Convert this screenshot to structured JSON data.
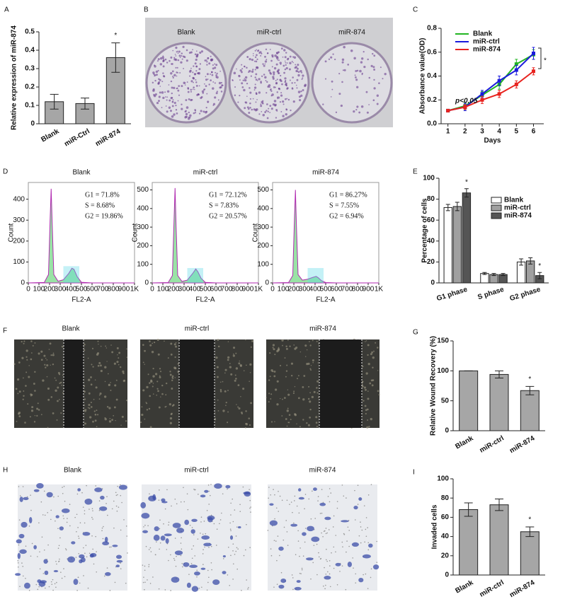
{
  "chart_data": [
    {
      "panel": "A",
      "type": "bar",
      "ylabel": "Relative expression of miR-874",
      "categories": [
        "Blank",
        "miR-Ctrl",
        "miR-874"
      ],
      "values": [
        0.12,
        0.11,
        0.36
      ],
      "errors": [
        0.04,
        0.03,
        0.08
      ],
      "color": "#a6a6a6",
      "ylim": [
        0,
        0.5
      ],
      "yticks": [
        0,
        0.1,
        0.2,
        0.3,
        0.4,
        0.5
      ],
      "annotations": [
        "*"
      ]
    },
    {
      "panel": "B",
      "type": "image",
      "style": "dish",
      "labels": [
        "Blank",
        "miR-ctrl",
        "miR-874"
      ]
    },
    {
      "panel": "C",
      "type": "line",
      "xlabel": "Days",
      "ylabel": "Absorbance value(OD)",
      "x": [
        1,
        2,
        3,
        4,
        5,
        6
      ],
      "xlim": [
        0.6,
        6.6
      ],
      "xticks": [
        1,
        2,
        3,
        4,
        5,
        6
      ],
      "ylim": [
        0,
        0.8
      ],
      "yticks": [
        {
          "value": 0,
          "label": "0.0"
        },
        0.2,
        0.4,
        0.6,
        0.8
      ],
      "series": [
        {
          "name": "Blank",
          "color": "#22b522",
          "values": [
            0.11,
            0.15,
            0.24,
            0.33,
            0.5,
            0.58
          ],
          "errors": [
            0.01,
            0.03,
            0.03,
            0.04,
            0.04,
            0.04
          ]
        },
        {
          "name": "miR-ctrl",
          "color": "#1a1adc",
          "values": [
            0.11,
            0.14,
            0.25,
            0.36,
            0.45,
            0.59
          ],
          "errors": [
            0.01,
            0.03,
            0.03,
            0.04,
            0.04,
            0.05
          ]
        },
        {
          "name": "miR-874",
          "color": "#e8231f",
          "values": [
            0.11,
            0.14,
            0.2,
            0.25,
            0.33,
            0.44
          ],
          "errors": [
            0.01,
            0.02,
            0.03,
            0.03,
            0.03,
            0.03
          ]
        }
      ],
      "annotations": [
        "p<0.05",
        "*"
      ]
    },
    {
      "panel": "D",
      "type": "flow",
      "plots": [
        {
          "title": "Blank",
          "stats": [
            "G1 = 71.8%",
            "S = 8.68%",
            "G2 = 19.86%"
          ],
          "xlabel": "FL2-A",
          "ylabel": "Count",
          "x": [
            0,
            150,
            190,
            205,
            215,
            225,
            240,
            280,
            330,
            380,
            410,
            430,
            460,
            500,
            600,
            1000
          ],
          "values": [
            0,
            2,
            40,
            300,
            450,
            280,
            40,
            8,
            15,
            45,
            70,
            65,
            30,
            3,
            0,
            0
          ],
          "xlim": [
            0,
            1000
          ],
          "xticks": [
            0,
            100,
            200,
            300,
            400,
            500,
            600,
            700,
            800,
            900,
            {
              "value": 1000,
              "label": "1K"
            }
          ],
          "ylim": [
            0,
            480
          ],
          "yticks": [
            0,
            100,
            200,
            300,
            400
          ]
        },
        {
          "title": "miR-ctrl",
          "stats": [
            "G1 = 72.12%",
            "S = 7.83%",
            "G2 = 20.57%"
          ],
          "xlabel": "FL2-A",
          "ylabel": "Count",
          "x": [
            0,
            150,
            190,
            205,
            215,
            225,
            240,
            280,
            330,
            380,
            410,
            430,
            460,
            500,
            600,
            1000
          ],
          "values": [
            0,
            2,
            40,
            330,
            510,
            300,
            40,
            8,
            15,
            50,
            75,
            60,
            25,
            3,
            0,
            0
          ],
          "xlim": [
            0,
            1000
          ],
          "xticks": [
            0,
            100,
            200,
            300,
            400,
            500,
            600,
            700,
            800,
            900,
            {
              "value": 1000,
              "label": "1K"
            }
          ],
          "ylim": [
            0,
            540
          ],
          "yticks": [
            0,
            100,
            200,
            300,
            400,
            500
          ]
        },
        {
          "title": "miR-874",
          "stats": [
            "G1 = 86.27%",
            "S = 7.55%",
            "G2 = 6.94%"
          ],
          "xlabel": "FL2-A",
          "ylabel": "Count",
          "x": [
            0,
            150,
            190,
            205,
            215,
            225,
            240,
            280,
            330,
            380,
            410,
            430,
            460,
            500,
            600,
            1000
          ],
          "values": [
            0,
            2,
            40,
            330,
            500,
            300,
            45,
            15,
            20,
            30,
            35,
            28,
            12,
            2,
            0,
            0
          ],
          "xlim": [
            0,
            1000
          ],
          "xticks": [
            0,
            100,
            200,
            300,
            400,
            500,
            600,
            700,
            800,
            900,
            {
              "value": 1000,
              "label": "1K"
            }
          ],
          "ylim": [
            0,
            540
          ],
          "yticks": [
            0,
            100,
            200,
            300,
            400,
            500
          ]
        }
      ]
    },
    {
      "panel": "E",
      "type": "grouped_bar",
      "ylabel": "Percentage of cells",
      "categories": [
        "G1 phase",
        "S phase",
        "G2 phase"
      ],
      "ylim": [
        0,
        100
      ],
      "yticks": [
        0,
        20,
        40,
        60,
        80,
        100
      ],
      "series": [
        {
          "name": "Blank",
          "color": "#ffffff",
          "values": [
            72,
            9,
            20
          ],
          "errors": [
            3,
            1,
            3
          ]
        },
        {
          "name": "miR-ctrl",
          "color": "#a0a0a0",
          "values": [
            73,
            8,
            21
          ],
          "errors": [
            4,
            1,
            3
          ]
        },
        {
          "name": "miR-874",
          "color": "#555555",
          "values": [
            86,
            8,
            7
          ],
          "errors": [
            4,
            1,
            3
          ]
        }
      ],
      "annotations": [
        "*",
        "*"
      ]
    },
    {
      "panel": "F",
      "type": "image",
      "style": "wound",
      "labels": [
        "Blank",
        "miR-ctrl",
        "miR-874"
      ]
    },
    {
      "panel": "G",
      "type": "bar",
      "ylabel": "Relative Wound Recovery (%)",
      "categories": [
        "Blank",
        "miR-ctrl",
        "miR-874"
      ],
      "values": [
        100,
        94,
        67
      ],
      "errors": [
        0,
        6,
        7
      ],
      "color": "#a6a6a6",
      "ylim": [
        0,
        150
      ],
      "yticks": [
        0,
        50,
        100,
        150
      ],
      "annotations": [
        "*"
      ]
    },
    {
      "panel": "H",
      "type": "image",
      "style": "stain",
      "labels": [
        "Blank",
        "miR-ctrl",
        "miR-874"
      ]
    },
    {
      "panel": "I",
      "type": "bar",
      "ylabel": "Invaded cells",
      "categories": [
        "Blank",
        "miR-ctrl",
        "miR-874"
      ],
      "values": [
        68,
        73,
        45
      ],
      "errors": [
        7,
        6,
        5
      ],
      "color": "#a6a6a6",
      "ylim": [
        0,
        100
      ],
      "yticks": [
        0,
        20,
        40,
        60,
        80,
        100
      ],
      "annotations": [
        "*"
      ]
    }
  ]
}
